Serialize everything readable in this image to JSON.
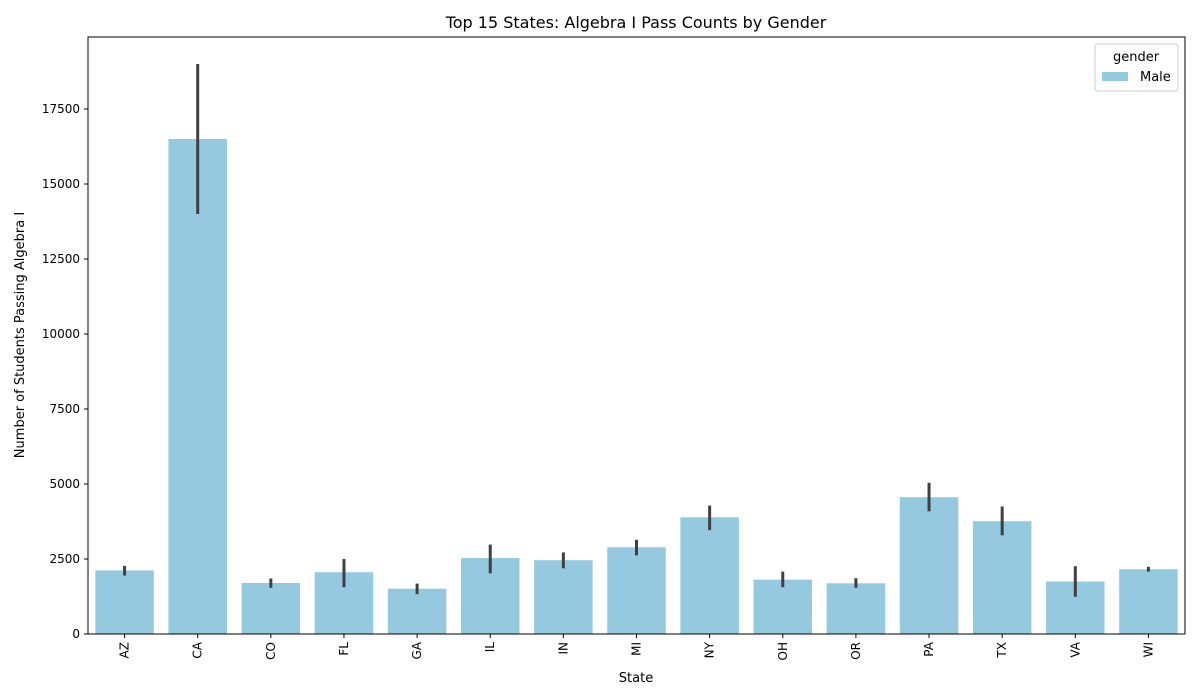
{
  "chart_data": {
    "type": "bar",
    "title": "Top 15 States: Algebra I Pass Counts by Gender",
    "xlabel": "State",
    "ylabel": "Number of Students Passing Algebra I",
    "categories": [
      "AZ",
      "CA",
      "CO",
      "FL",
      "GA",
      "IL",
      "IN",
      "MI",
      "NY",
      "OH",
      "OR",
      "PA",
      "TX",
      "VA",
      "WI"
    ],
    "ylim": [
      0,
      19900
    ],
    "yticks": [
      0,
      2500,
      5000,
      7500,
      10000,
      12500,
      15000,
      17500
    ],
    "ytick_labels": [
      "0",
      "2500",
      "5000",
      "7500",
      "10000",
      "12500",
      "15000",
      "17500"
    ],
    "series": [
      {
        "name": "Male",
        "color": "#95c9e0",
        "values": [
          2120,
          16500,
          1700,
          2060,
          1510,
          2530,
          2460,
          2890,
          3890,
          1810,
          1690,
          4560,
          3760,
          1750,
          2160
        ],
        "ci_low": [
          1950,
          14000,
          1540,
          1560,
          1330,
          2020,
          2190,
          2620,
          3460,
          1560,
          1540,
          4090,
          3290,
          1240,
          2080
        ],
        "ci_high": [
          2270,
          19000,
          1850,
          2500,
          1680,
          2980,
          2720,
          3140,
          4280,
          2080,
          1860,
          5040,
          4250,
          2260,
          2240
        ]
      }
    ],
    "errorbar_color": "#404040",
    "grid": false,
    "legend": {
      "title": "gender",
      "position": "top-right"
    }
  }
}
